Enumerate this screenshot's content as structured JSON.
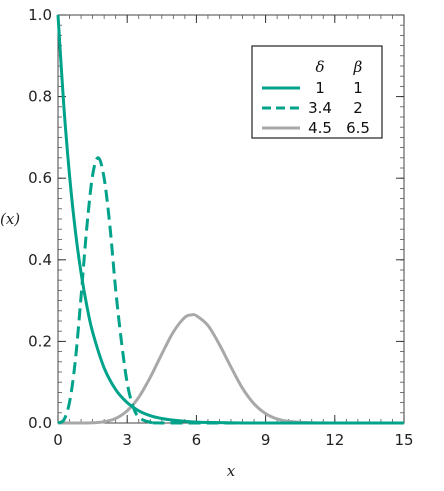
{
  "chart_data": {
    "type": "line",
    "xlabel": "x",
    "ylabel": "(x)",
    "xlim": [
      0,
      15
    ],
    "ylim": [
      0,
      1.0
    ],
    "xticks": [
      "0",
      "3",
      "6",
      "9",
      "12",
      "15"
    ],
    "yticks": [
      "0.0",
      "0.2",
      "0.4",
      "0.6",
      "0.8",
      "1.0"
    ],
    "legend": {
      "placement": "top-right",
      "headers": [
        "δ",
        "β"
      ],
      "entries": [
        {
          "delta": "1",
          "beta": "1",
          "color": "#00a38a",
          "dash": "solid"
        },
        {
          "delta": "3.4",
          "beta": "2",
          "color": "#00a38a",
          "dash": "dashed"
        },
        {
          "delta": "4.5",
          "beta": "6.5",
          "color": "#a8a8a8",
          "dash": "solid"
        }
      ]
    },
    "series": [
      {
        "color": "#00a38a",
        "dash": "solid",
        "x": [
          0,
          0.25,
          0.5,
          0.75,
          1,
          1.25,
          1.5,
          2,
          2.5,
          3,
          3.5,
          4,
          4.5,
          5,
          6,
          7,
          8,
          10,
          15
        ],
        "y": [
          1.0,
          0.779,
          0.607,
          0.472,
          0.368,
          0.287,
          0.223,
          0.135,
          0.082,
          0.05,
          0.03,
          0.018,
          0.011,
          0.007,
          0.002,
          0.001,
          0.0,
          0.0,
          0.0
        ]
      },
      {
        "color": "#00a38a",
        "dash": "dashed",
        "x": [
          0,
          0.25,
          0.5,
          0.75,
          1,
          1.25,
          1.5,
          1.75,
          2,
          2.25,
          2.5,
          2.75,
          3,
          3.25,
          3.5,
          4,
          5,
          15
        ],
        "y": [
          0.0,
          0.007,
          0.051,
          0.152,
          0.31,
          0.48,
          0.607,
          0.65,
          0.6,
          0.483,
          0.327,
          0.2,
          0.098,
          0.041,
          0.015,
          0.002,
          0.0,
          0.0
        ]
      },
      {
        "color": "#a8a8a8",
        "dash": "solid",
        "x": [
          0,
          1,
          1.5,
          2,
          2.5,
          3,
          3.5,
          4,
          4.5,
          5,
          5.5,
          5.8,
          6,
          6.5,
          7,
          7.5,
          8,
          8.5,
          9,
          9.5,
          10,
          11,
          12,
          15
        ],
        "y": [
          0.0,
          0.0,
          0.0005,
          0.003,
          0.011,
          0.03,
          0.063,
          0.112,
          0.169,
          0.223,
          0.259,
          0.265,
          0.263,
          0.239,
          0.192,
          0.137,
          0.085,
          0.047,
          0.023,
          0.01,
          0.004,
          0.0005,
          0.0,
          0.0
        ]
      }
    ]
  }
}
